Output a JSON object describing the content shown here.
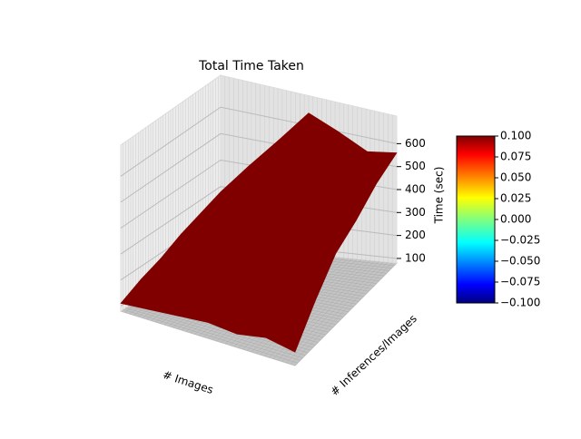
{
  "chart_data": {
    "type": "surface",
    "title": "Total Time Taken",
    "xlabel": "# Images",
    "ylabel": "# Inferences/Images",
    "zlabel": "Time (sec)",
    "z": [
      [
        110,
        120,
        130,
        140,
        130,
        150,
        130
      ],
      [
        150,
        170,
        190,
        210,
        200,
        220,
        250
      ],
      [
        180,
        230,
        280,
        320,
        330,
        340,
        360
      ],
      [
        220,
        300,
        380,
        450,
        480,
        470,
        420
      ],
      [
        250,
        360,
        470,
        600,
        690,
        560,
        500
      ],
      [
        280,
        400,
        520,
        650,
        600,
        540,
        560
      ]
    ],
    "color": "#800000",
    "zlim": [
      80,
      720
    ],
    "zticks": [
      100,
      200,
      300,
      400,
      500,
      600
    ],
    "colorbar": {
      "lim": [
        -0.1,
        0.1
      ],
      "ticks": [
        {
          "value": 0.1,
          "label": "0.100"
        },
        {
          "value": 0.075,
          "label": "0.075"
        },
        {
          "value": 0.05,
          "label": "0.050"
        },
        {
          "value": 0.025,
          "label": "0.025"
        },
        {
          "value": 0,
          "label": "0.000"
        },
        {
          "value": -0.025,
          "label": "−0.025"
        },
        {
          "value": -0.05,
          "label": "−0.050"
        },
        {
          "value": -0.075,
          "label": "−0.075"
        },
        {
          "value": -0.1,
          "label": "−0.100"
        }
      ]
    }
  }
}
